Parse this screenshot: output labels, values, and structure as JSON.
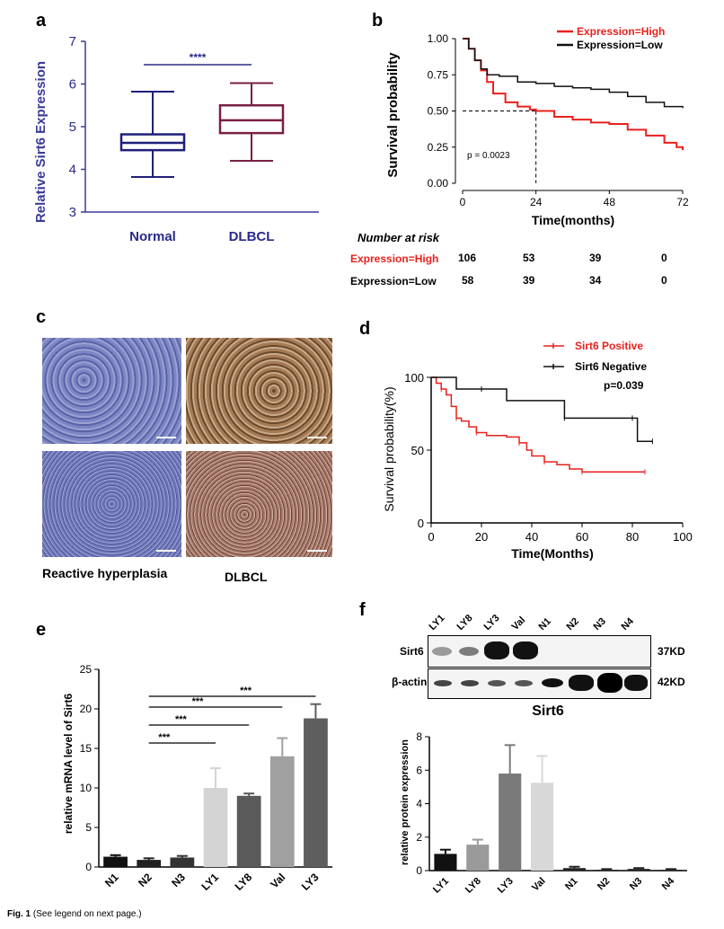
{
  "panels": {
    "a": {
      "letter": "a",
      "ylabel": "Relative Sirt6 Expression",
      "yticks": [
        "3",
        "4",
        "5",
        "6",
        "7"
      ],
      "groups": [
        "Normal",
        "DLBCL"
      ],
      "significance": "****",
      "colors": {
        "normal": "#1f1f7a",
        "dlbcl": "#7a1f45",
        "axis": "#3a3a9a"
      },
      "boxes": [
        {
          "name": "Normal",
          "min": 3.82,
          "q1": 4.45,
          "median": 4.62,
          "q3": 4.82,
          "max": 5.82
        },
        {
          "name": "DLBCL",
          "min": 4.2,
          "q1": 4.85,
          "median": 5.15,
          "q3": 5.5,
          "max": 6.02
        }
      ]
    },
    "b": {
      "letter": "b",
      "ylabel": "Survival probability",
      "xlabel": "Time(months)",
      "yticks": [
        "0.00",
        "0.25",
        "0.50",
        "0.75",
        "1.00"
      ],
      "xticks": [
        "0",
        "24",
        "48",
        "72"
      ],
      "legend": [
        "Expression=High",
        "Expression=Low"
      ],
      "pvalue": "p = 0.0023",
      "risk_title": "Number at risk",
      "risk_rows": [
        {
          "label": "Expression=High",
          "values": [
            "106",
            "53",
            "39",
            "0"
          ]
        },
        {
          "label": "Expression=Low",
          "values": [
            "58",
            "39",
            "34",
            "0"
          ]
        }
      ],
      "colors": {
        "high": "#e8211d",
        "low": "#111111"
      }
    },
    "c": {
      "letter": "c",
      "labels": [
        "Reactive hyperplasia",
        "DLBCL"
      ]
    },
    "d": {
      "letter": "d",
      "ylabel": "Survival probability(%)",
      "xlabel": "Time(Months)",
      "yticks": [
        "0",
        "50",
        "100"
      ],
      "xticks": [
        "0",
        "20",
        "40",
        "60",
        "80",
        "100"
      ],
      "legend": [
        "Sirt6 Positive",
        "Sirt6 Negative"
      ],
      "pvalue": "p=0.039",
      "colors": {
        "positive": "#e8211d",
        "negative": "#111111"
      }
    },
    "e": {
      "letter": "e",
      "ylabel": "relative mRNA level of Sirt6",
      "yticks": [
        "0",
        "5",
        "10",
        "15",
        "20",
        "25"
      ],
      "significance": [
        "***",
        "***",
        "***",
        "***"
      ]
    },
    "f": {
      "letter": "f",
      "blot_lanes": [
        "LY1",
        "LY8",
        "LY3",
        "Val",
        "N1",
        "N2",
        "N3",
        "N4"
      ],
      "blot_rows": [
        {
          "name": "Sirt6",
          "size": "37KD"
        },
        {
          "name": "β-actin",
          "size": "42KD"
        }
      ],
      "chart_title": "Sirt6",
      "ylabel": "relative protein expression",
      "yticks": [
        "0",
        "2",
        "4",
        "6",
        "8"
      ]
    }
  },
  "chart_data": [
    {
      "type": "box",
      "title": "",
      "ylabel": "Relative Sirt6 Expression",
      "categories": [
        "Normal",
        "DLBCL"
      ],
      "ylim": [
        3,
        7
      ]
    },
    {
      "type": "line",
      "title": "",
      "xlabel": "Time(months)",
      "ylabel": "Survival probability",
      "xlim": [
        0,
        72
      ],
      "ylim": [
        0,
        1
      ],
      "series": [
        {
          "name": "Expression=High",
          "x": [
            0,
            2,
            4,
            6,
            8,
            10,
            14,
            18,
            22,
            24,
            30,
            36,
            42,
            48,
            54,
            60,
            66,
            70,
            72
          ],
          "y": [
            1.0,
            0.93,
            0.85,
            0.78,
            0.7,
            0.62,
            0.56,
            0.53,
            0.51,
            0.5,
            0.46,
            0.44,
            0.42,
            0.41,
            0.37,
            0.33,
            0.28,
            0.25,
            0.23
          ]
        },
        {
          "name": "Expression=Low",
          "x": [
            0,
            2,
            4,
            6,
            8,
            12,
            18,
            24,
            30,
            36,
            42,
            48,
            54,
            60,
            66,
            72
          ],
          "y": [
            1.0,
            0.93,
            0.85,
            0.79,
            0.75,
            0.74,
            0.7,
            0.69,
            0.67,
            0.66,
            0.65,
            0.63,
            0.6,
            0.56,
            0.53,
            0.52
          ]
        }
      ]
    },
    {
      "type": "line",
      "title": "",
      "xlabel": "Time(Months)",
      "ylabel": "Survival probability(%)",
      "xlim": [
        0,
        100
      ],
      "ylim": [
        0,
        100
      ],
      "series": [
        {
          "name": "Sirt6 Positive",
          "x": [
            0,
            2,
            4,
            6,
            8,
            10,
            12,
            15,
            18,
            22,
            30,
            35,
            38,
            40,
            45,
            50,
            55,
            60,
            70,
            80,
            85
          ],
          "y": [
            100,
            96,
            92,
            88,
            80,
            72,
            70,
            66,
            62,
            60,
            59,
            55,
            50,
            46,
            42,
            40,
            37,
            35,
            35,
            35,
            35
          ]
        },
        {
          "name": "Sirt6 Negative",
          "x": [
            0,
            10,
            20,
            30,
            40,
            53,
            60,
            70,
            80,
            82,
            85,
            88
          ],
          "y": [
            100,
            92,
            92,
            84,
            84,
            72,
            72,
            72,
            72,
            56,
            56,
            56
          ]
        }
      ]
    },
    {
      "type": "bar",
      "title": "",
      "ylabel": "relative mRNA level of Sirt6",
      "categories": [
        "N1",
        "N2",
        "N3",
        "LY1",
        "LY8",
        "Val",
        "LY3"
      ],
      "values": [
        1.3,
        0.9,
        1.2,
        10.0,
        9.0,
        14.0,
        18.8
      ],
      "errors": [
        0.2,
        0.2,
        0.2,
        2.5,
        0.3,
        2.3,
        1.8
      ],
      "ylim": [
        0,
        25
      ]
    },
    {
      "type": "bar",
      "title": "Sirt6",
      "ylabel": "relative protein expression",
      "categories": [
        "LY1",
        "LY8",
        "LY3",
        "Val",
        "N1",
        "N2",
        "N3",
        "N4"
      ],
      "values": [
        1.0,
        1.55,
        5.8,
        5.25,
        0.15,
        0.05,
        0.1,
        0.05
      ],
      "errors": [
        0.25,
        0.3,
        1.7,
        1.6,
        0.08,
        0.04,
        0.05,
        0.04
      ],
      "ylim": [
        0,
        8
      ]
    }
  ],
  "caption": {
    "label": "Fig. 1",
    "text": "(See legend on next page.)"
  }
}
